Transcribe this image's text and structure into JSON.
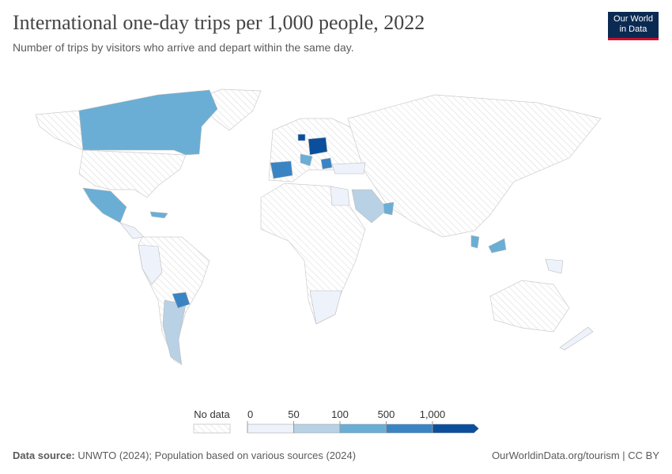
{
  "header": {
    "title": "International one-day trips per 1,000 people, 2022",
    "subtitle": "Number of trips by visitors who arrive and depart within the same day.",
    "logo": [
      "Our World",
      "in Data"
    ]
  },
  "legend": {
    "no_data_label": "No data",
    "bins": [
      0,
      50,
      100,
      500,
      {
        "value": 1000,
        "label": "1,000"
      }
    ],
    "colors": [
      "#eef2fb",
      "#b9d1e4",
      "#6aaed6",
      "#3a84c4",
      "#0b4f9c"
    ]
  },
  "footer": {
    "source_label": "Data source:",
    "source": "UNWTO (2024); Population based on various sources (2024)",
    "url": "OurWorldinData.org/tourism | CC BY"
  }
}
